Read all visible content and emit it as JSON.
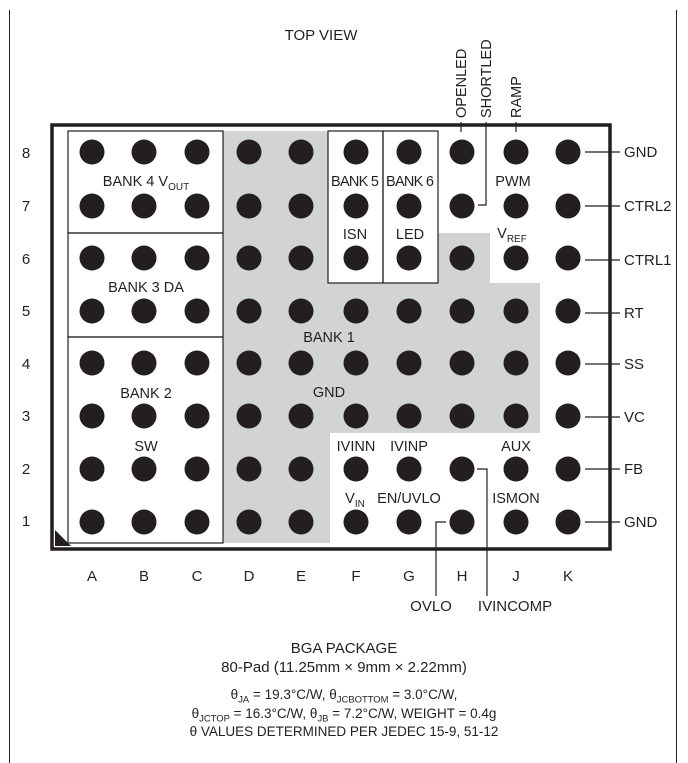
{
  "diagram": {
    "view_label": "TOP VIEW",
    "row_labels": [
      "8",
      "7",
      "6",
      "5",
      "4",
      "3",
      "2",
      "1"
    ],
    "column_labels": [
      "A",
      "B",
      "C",
      "D",
      "E",
      "F",
      "G",
      "H",
      "J",
      "K"
    ],
    "regions": {
      "bank4": {
        "main": "BANK 4 V",
        "sub": "OUT"
      },
      "bank3": "BANK 3 DA",
      "bank2": "BANK 2",
      "sw": "SW",
      "bank5": "BANK 5",
      "bank6": "BANK 6",
      "isn": "ISN",
      "led": "LED",
      "bank1": "BANK 1",
      "gnd": "GND"
    },
    "inner_labels": {
      "pwm": "PWM",
      "vref": {
        "main": "V",
        "sub": "REF"
      },
      "ivinn": "IVINN",
      "ivinp": "IVINP",
      "aux": "AUX",
      "vin": {
        "main": "V",
        "sub": "IN"
      },
      "en_uvlo": "EN/UVLO",
      "ismon": "ISMON"
    },
    "top_pins": [
      "OPENLED",
      "SHORTLED",
      "RAMP"
    ],
    "right_pins": [
      "GND",
      "CTRL2",
      "CTRL1",
      "RT",
      "SS",
      "VC",
      "FB",
      "GND"
    ],
    "bottom_pins": [
      "OVLO",
      "IVINCOMP"
    ],
    "colors": {
      "ink": "#231f20",
      "gnd_shade": "#d1d3d4",
      "background": "#ffffff"
    }
  },
  "package": {
    "title": "BGA PACKAGE",
    "description": "80-Pad (11.25mm × 9mm × 2.22mm)",
    "thermal": {
      "theta": "θ",
      "ja_sub": "JA",
      "ja_val": " = 19.3°C/W, ",
      "jcbottom_sub": "JCBOTTOM",
      "jcbottom_val": " = 3.0°C/W,",
      "jctop_sub": "JCTOP",
      "jctop_val": " = 16.3°C/W, ",
      "jb_sub": "JB",
      "jb_val": " = 7.2°C/W, WEIGHT = 0.4g",
      "note": "θ VALUES DETERMINED PER JEDEC 15-9, 51-12"
    }
  }
}
